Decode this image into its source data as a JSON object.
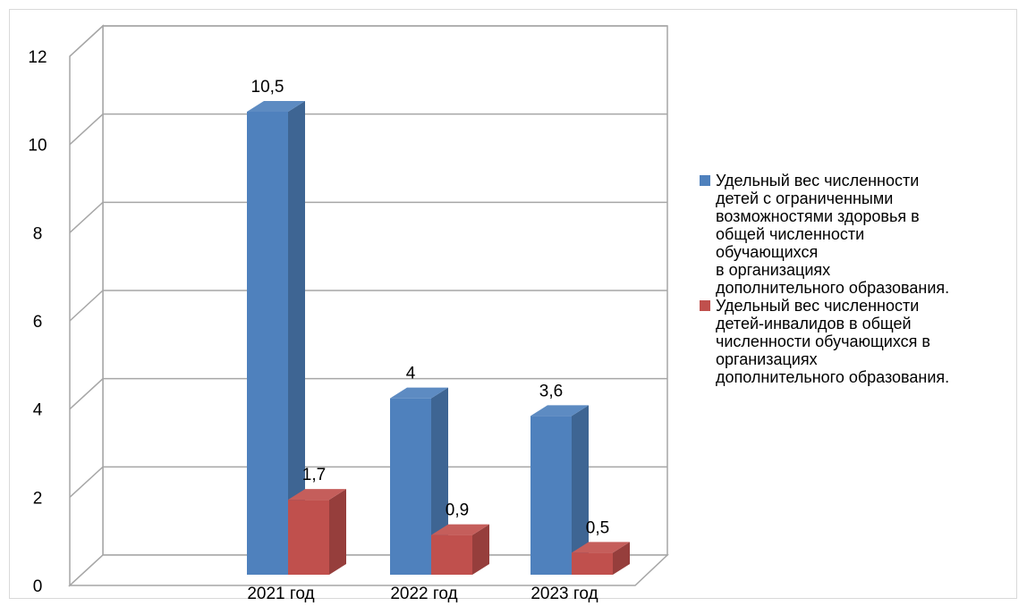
{
  "chart_data": {
    "type": "bar",
    "categories": [
      "2021 год",
      "2022 год",
      "2023 год"
    ],
    "series": [
      {
        "name": "Удельный вес численности\nдетей с ограниченными\nвозможностями здоровья в\nобщей численности\nобучающихся\nв организациях\nдополнительного образования.",
        "color": "#4f81bd",
        "values": [
          10.5,
          4,
          3.6
        ],
        "labels": [
          "10,5",
          "4",
          "3,6"
        ]
      },
      {
        "name": "Удельный вес численности\nдетей-инвалидов в общей\nчисленности обучающихся в\nорганизациях\nдополнительного образования.",
        "color": "#c0504d",
        "values": [
          1.7,
          0.9,
          0.5
        ],
        "labels": [
          "1,7",
          "0,9",
          "0,5"
        ]
      }
    ],
    "ylim": [
      0,
      12
    ],
    "yticks": [
      "0",
      "2",
      "4",
      "6",
      "8",
      "10",
      "12"
    ],
    "grid": true,
    "legend_position": "right",
    "three_d": true
  }
}
